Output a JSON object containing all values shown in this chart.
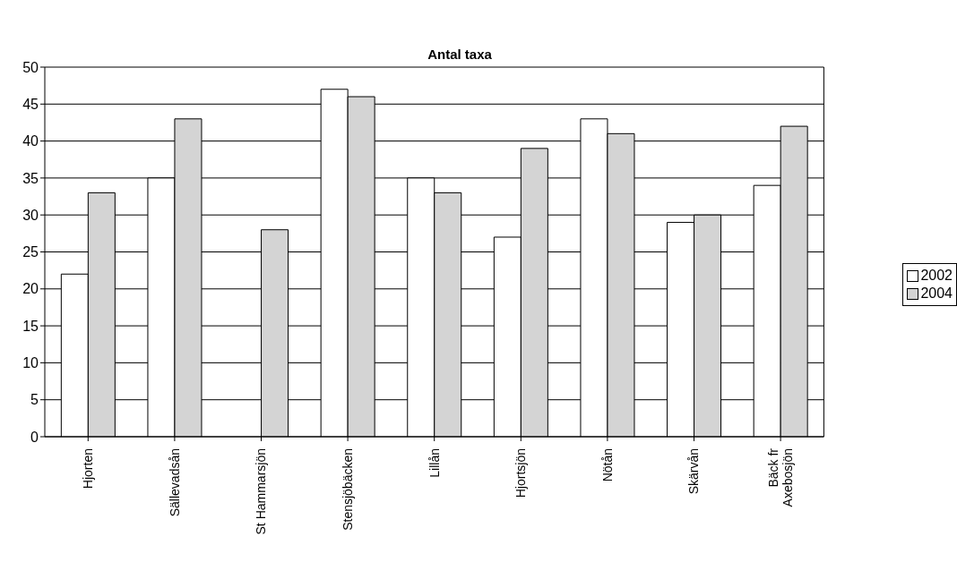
{
  "chart_data": {
    "type": "bar",
    "title": "Antal taxa",
    "categories": [
      "Hjorten",
      "Sällevadsån",
      "St Hammarsjön",
      "Stensjöbäcken",
      "Lillån",
      "Hjortsjön",
      "Nötån",
      "Skärvån",
      "Bäck fr Axebosjön"
    ],
    "series": [
      {
        "name": "2002",
        "color": "#ffffff",
        "values": [
          22,
          35,
          null,
          47,
          35,
          27,
          43,
          29,
          34
        ]
      },
      {
        "name": "2004",
        "color": "#d4d4d4",
        "values": [
          33,
          43,
          28,
          46,
          33,
          39,
          41,
          30,
          42
        ]
      }
    ],
    "ylim": [
      0,
      50
    ],
    "yticks": [
      0,
      5,
      10,
      15,
      20,
      25,
      30,
      35,
      40,
      45,
      50
    ],
    "grid": "y",
    "legend": "right"
  }
}
